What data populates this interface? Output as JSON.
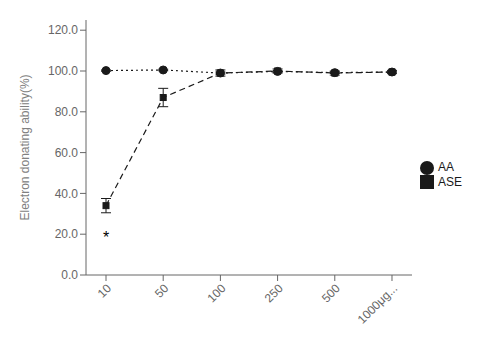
{
  "chart_data": {
    "type": "line",
    "categories": [
      "10",
      "50",
      "100",
      "250",
      "500",
      "1000μg..."
    ],
    "series": [
      {
        "name": "AA",
        "color": "#1a1a1a",
        "values": [
          100.2,
          100.5,
          99.0,
          99.8,
          99.2,
          99.5
        ],
        "errors": [
          0.3,
          0.4,
          0.5,
          0.4,
          0.4,
          0.4
        ],
        "marker": "circle",
        "line_style": "dotted"
      },
      {
        "name": "ASE",
        "color": "#1a1a1a",
        "values": [
          34.0,
          87.0,
          99.0,
          100.0,
          99.0,
          99.5
        ],
        "errors": [
          3.5,
          4.5,
          1.5,
          1.0,
          1.0,
          0.8
        ],
        "marker": "square",
        "line_style": "dashed"
      }
    ],
    "ylabel": "Electron donating ability(%)",
    "ylim": [
      0.0,
      125.0
    ],
    "yticks": [
      {
        "value": 0,
        "label": "0.0"
      },
      {
        "value": 20,
        "label": "20.0"
      },
      {
        "value": 40,
        "label": "40.0"
      },
      {
        "value": 60,
        "label": "60.0"
      },
      {
        "value": 80,
        "label": "80.0"
      },
      {
        "value": 100,
        "label": "100.0"
      },
      {
        "value": 120,
        "label": "120.0"
      }
    ],
    "annotations": [
      {
        "text": "*",
        "x": "10",
        "y": 23.5
      }
    ],
    "legend": "right",
    "grid": false
  }
}
